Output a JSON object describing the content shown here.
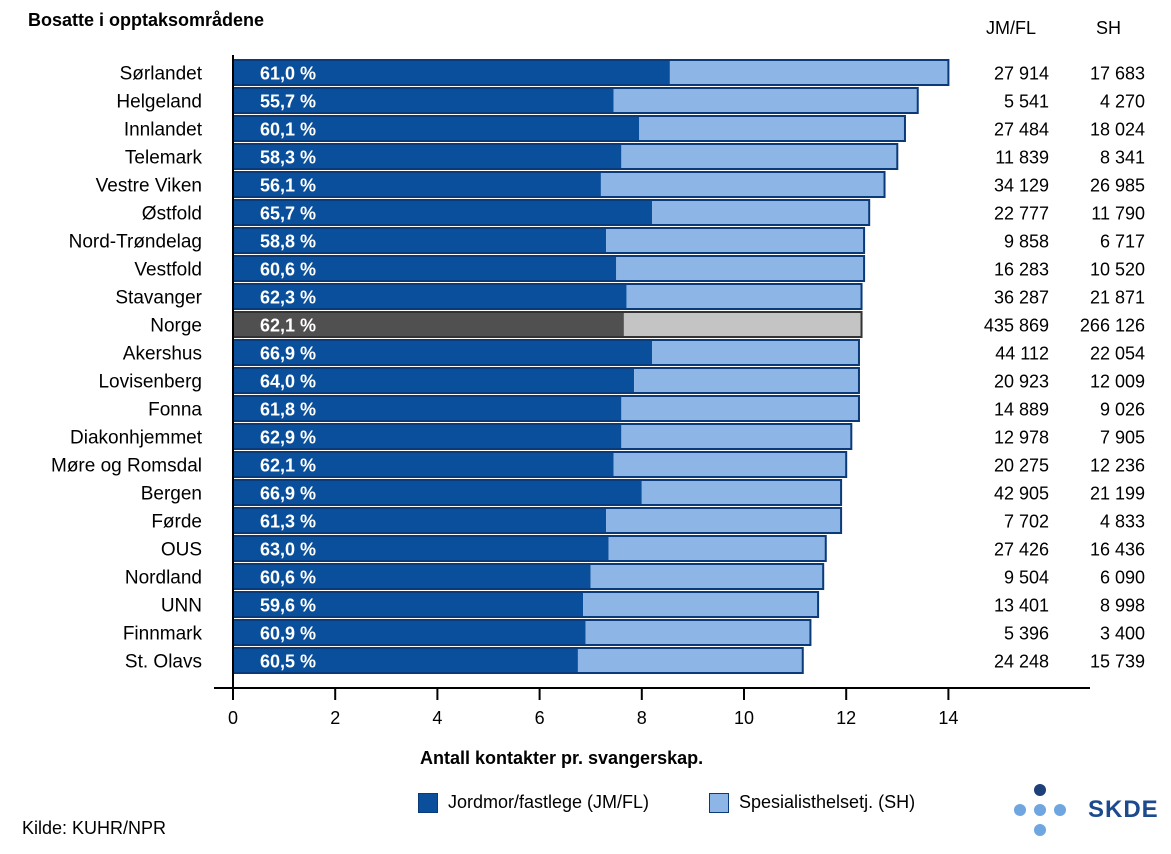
{
  "header": {
    "title": "Bosatte i opptaksområdene",
    "col_jmfl": "JM/FL",
    "col_sh": "SH"
  },
  "footer": {
    "source": "Kilde: KUHR/NPR",
    "logo_text": "SKDE"
  },
  "colors": {
    "jm_fl": "#0a4f9c",
    "sh": "#8db6e6",
    "norge_jm_fl": "#505050",
    "norge_sh": "#c4c4c4",
    "bar_border": "#0a3a78"
  },
  "chart_data": {
    "type": "bar",
    "orientation": "horizontal",
    "stacked": true,
    "title": "Bosatte i opptaksområdene",
    "xlabel": "Antall kontakter pr. svangerskap.",
    "ylabel": "",
    "xlim": [
      0,
      14
    ],
    "xticks": [
      0,
      2,
      4,
      6,
      8,
      10,
      12,
      14
    ],
    "highlight": "Norge",
    "legend": {
      "position": "bottom",
      "entries": [
        "Jordmor/fastlege (JM/FL)",
        "Spesialisthelsetj. (SH)"
      ]
    },
    "categories": [
      "Sørlandet",
      "Helgeland",
      "Innlandet",
      "Telemark",
      "Vestre Viken",
      "Østfold",
      "Nord-Trøndelag",
      "Vestfold",
      "Stavanger",
      "Norge",
      "Akershus",
      "Lovisenberg",
      "Fonna",
      "Diakonhjemmet",
      "Møre og Romsdal",
      "Bergen",
      "Førde",
      "OUS",
      "Nordland",
      "UNN",
      "Finnmark",
      "St. Olavs"
    ],
    "series": [
      {
        "name": "Jordmor/fastlege (JM/FL)",
        "values": [
          8.55,
          7.45,
          7.95,
          7.6,
          7.2,
          8.2,
          7.3,
          7.5,
          7.7,
          7.65,
          8.2,
          7.85,
          7.6,
          7.6,
          7.45,
          8.0,
          7.3,
          7.35,
          7.0,
          6.85,
          6.9,
          6.75
        ]
      },
      {
        "name": "Spesialisthelsetj. (SH)",
        "values": [
          5.45,
          5.95,
          5.2,
          5.4,
          5.55,
          4.25,
          5.05,
          4.85,
          4.6,
          4.65,
          4.05,
          4.4,
          4.65,
          4.5,
          4.55,
          3.9,
          4.6,
          4.25,
          4.55,
          4.6,
          4.4,
          4.4
        ]
      }
    ],
    "share_labels": [
      "61,0 %",
      "55,7 %",
      "60,1 %",
      "58,3 %",
      "56,1 %",
      "65,7 %",
      "58,8 %",
      "60,6 %",
      "62,3 %",
      "62,1 %",
      "66,9 %",
      "64,0 %",
      "61,8 %",
      "62,9 %",
      "62,1 %",
      "66,9 %",
      "61,3 %",
      "63,0 %",
      "60,6 %",
      "59,6 %",
      "60,9 %",
      "60,5 %"
    ],
    "table": {
      "jm_fl": [
        "27 914",
        "5 541",
        "27 484",
        "11 839",
        "34 129",
        "22 777",
        "9 858",
        "16 283",
        "36 287",
        "435 869",
        "44 112",
        "20 923",
        "14 889",
        "12 978",
        "20 275",
        "42 905",
        "7 702",
        "27 426",
        "9 504",
        "13 401",
        "5 396",
        "24 248"
      ],
      "sh": [
        "17 683",
        "4 270",
        "18 024",
        "8 341",
        "26 985",
        "11 790",
        "6 717",
        "10 520",
        "21 871",
        "266 126",
        "22 054",
        "12 009",
        "9 026",
        "7 905",
        "12 236",
        "21 199",
        "4 833",
        "16 436",
        "6 090",
        "8 998",
        "3 400",
        "15 739"
      ]
    }
  }
}
